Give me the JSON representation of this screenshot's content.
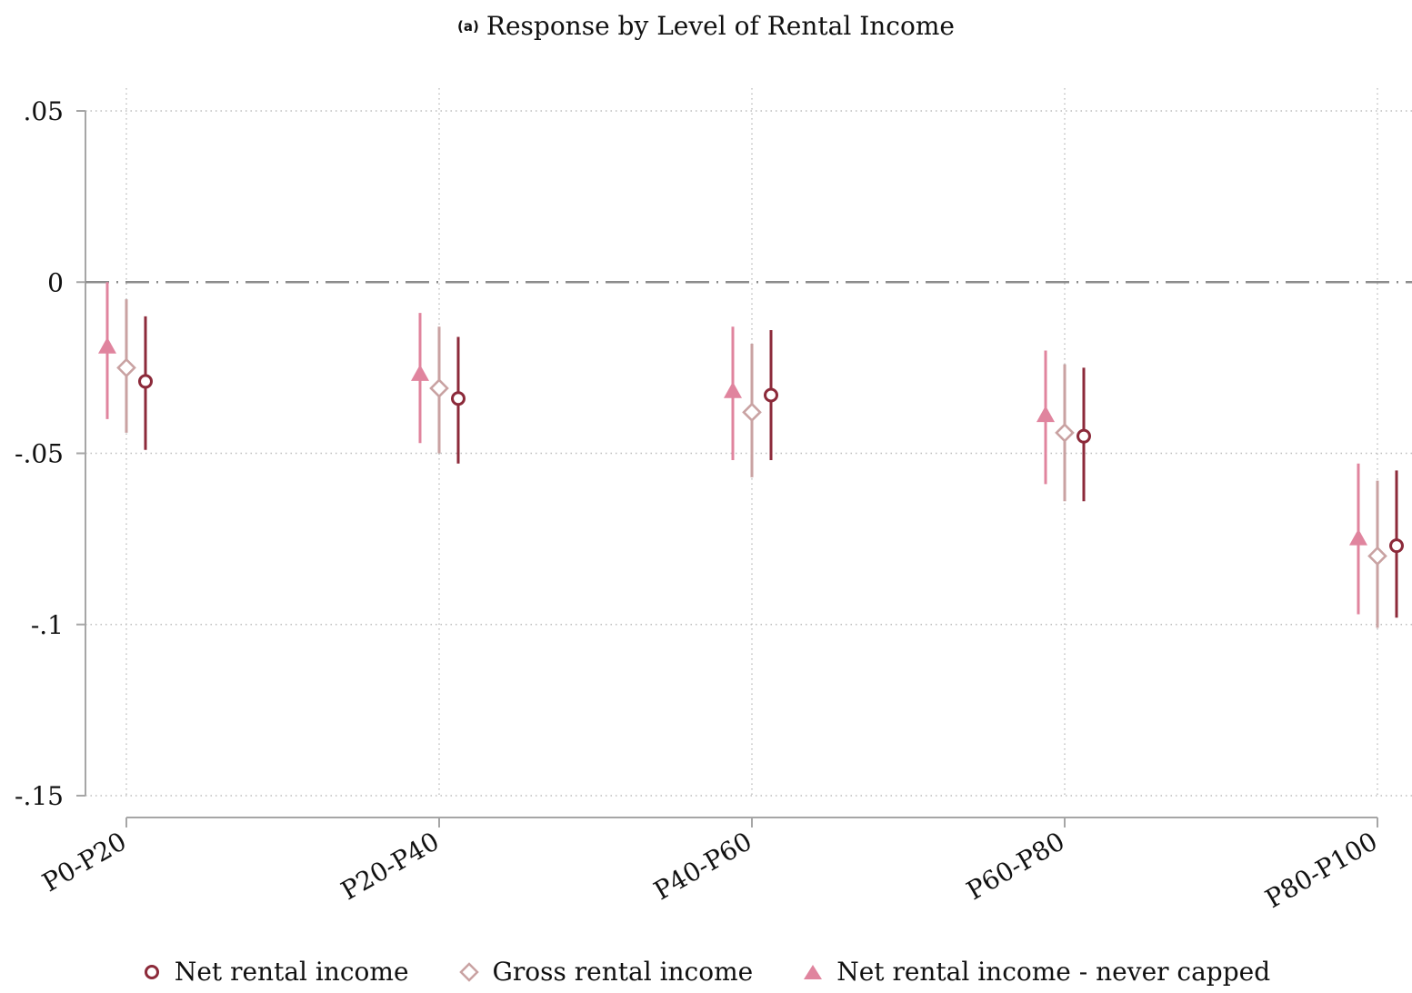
{
  "chart_data": {
    "type": "scatter",
    "subtitle_tag": "(a)",
    "title": "Response by Level of Rental Income",
    "categories": [
      "P0-P20",
      "P20-P40",
      "P40-P60",
      "P60-P80",
      "P80-P100"
    ],
    "y_ticks": [
      0.05,
      0,
      -0.05,
      -0.1,
      -0.15
    ],
    "y_tick_labels": [
      ".05",
      "0",
      "-.05",
      "-.1",
      "-.15"
    ],
    "ylim": [
      -0.15,
      0.05
    ],
    "reference_line": 0,
    "grid": true,
    "legend_placement": "bottom",
    "series": [
      {
        "name": "Net rental income - never capped",
        "marker": "triangle",
        "color": "#e0849e",
        "values": [
          -0.019,
          -0.027,
          -0.032,
          -0.039,
          -0.075
        ],
        "ci_low": [
          -0.04,
          -0.047,
          -0.052,
          -0.059,
          -0.097
        ],
        "ci_high": [
          0.0,
          -0.009,
          -0.013,
          -0.02,
          -0.053
        ]
      },
      {
        "name": "Gross rental income",
        "marker": "diamond",
        "color": "#c9a2a2",
        "values": [
          -0.025,
          -0.031,
          -0.038,
          -0.044,
          -0.08
        ],
        "ci_low": [
          -0.044,
          -0.05,
          -0.057,
          -0.064,
          -0.101
        ],
        "ci_high": [
          -0.005,
          -0.013,
          -0.018,
          -0.024,
          -0.058
        ]
      },
      {
        "name": "Net rental income",
        "marker": "circle",
        "color": "#8c2a3a",
        "values": [
          -0.029,
          -0.034,
          -0.033,
          -0.045,
          -0.077
        ],
        "ci_low": [
          -0.049,
          -0.053,
          -0.052,
          -0.064,
          -0.098
        ],
        "ci_high": [
          -0.01,
          -0.016,
          -0.014,
          -0.025,
          -0.055
        ]
      }
    ]
  },
  "legend": {
    "items": [
      {
        "label": "Net rental income",
        "marker": "circle",
        "color": "#8c2a3a"
      },
      {
        "label": "Gross rental income",
        "marker": "diamond",
        "color": "#c9a2a2"
      },
      {
        "label": "Net rental income - never capped",
        "marker": "triangle",
        "color": "#e0849e"
      }
    ]
  }
}
